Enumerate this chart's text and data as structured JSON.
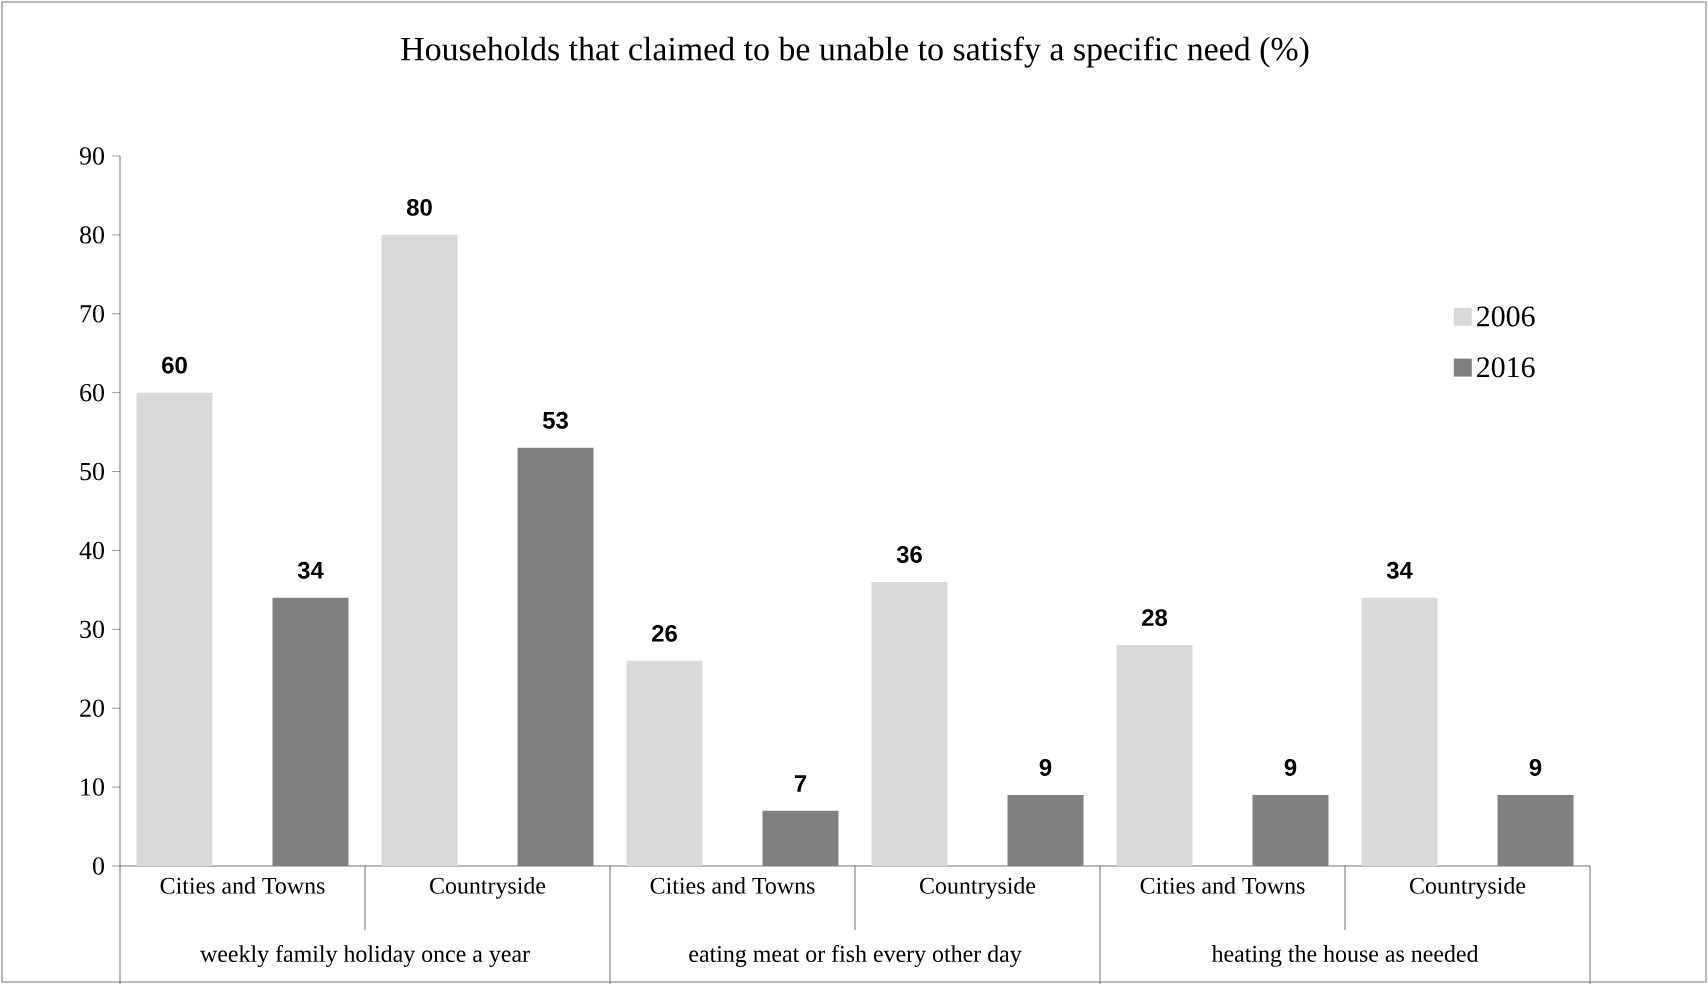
{
  "chart_data": {
    "type": "bar",
    "title": "Households that claimed to be unable to satisfy a specific need (%)",
    "categories": [
      "Cities and Towns",
      "Countryside",
      "Cities and Towns",
      "Countryside",
      "Cities and Towns",
      "Countryside"
    ],
    "series": [
      {
        "name": "2006",
        "color": "#d9d9d9",
        "values": [
          60,
          80,
          26,
          36,
          28,
          34
        ]
      },
      {
        "name": "2016",
        "color": "#808080",
        "values": [
          34,
          53,
          7,
          9,
          9,
          9
        ]
      }
    ],
    "annotations": [
      "weekly family holiday once a year",
      "eating meat or fish every other day",
      "heating the house as needed"
    ],
    "ylim": [
      0,
      90
    ],
    "yticks": [
      0,
      10,
      20,
      30,
      40,
      50,
      60,
      70,
      80,
      90
    ],
    "data_labels": true,
    "legend": "right",
    "grid": false
  }
}
